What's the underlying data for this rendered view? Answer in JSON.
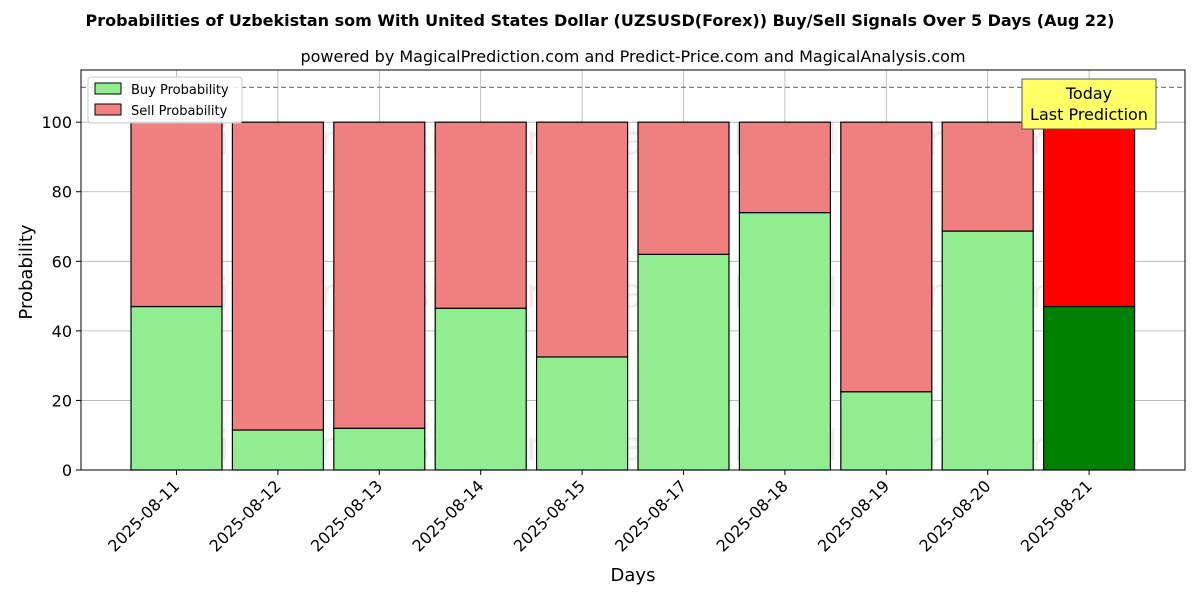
{
  "chart_data": {
    "type": "bar",
    "stacked": true,
    "title": "Probabilities of Uzbekistan som With United States Dollar (UZSUSD(Forex)) Buy/Sell Signals Over 5 Days (Aug 22)",
    "subtitle": "powered by MagicalPrediction.com and Predict-Price.com and MagicalAnalysis.com",
    "xlabel": "Days",
    "ylabel": "Probability",
    "ylim": [
      0,
      115
    ],
    "yticks": [
      0,
      20,
      40,
      60,
      80,
      100
    ],
    "grid": true,
    "reference_line": 110,
    "categories": [
      "2025-08-11",
      "2025-08-12",
      "2025-08-13",
      "2025-08-14",
      "2025-08-15",
      "2025-08-17",
      "2025-08-18",
      "2025-08-19",
      "2025-08-20",
      "2025-08-21"
    ],
    "series": [
      {
        "name": "Buy Probability",
        "color": "#90ee90",
        "highlight_color": "#008000",
        "values": [
          47,
          11.5,
          12,
          46.5,
          32.5,
          62,
          74,
          22.5,
          68.7,
          47
        ]
      },
      {
        "name": "Sell Probability",
        "color": "#f08080",
        "highlight_color": "#ff0000",
        "values": [
          53,
          88.5,
          88,
          53.5,
          67.5,
          38,
          26,
          77.5,
          31.3,
          53
        ]
      }
    ],
    "highlight_index": 9,
    "legend_position": "top-left",
    "annotation": {
      "line1": "Today",
      "line2": "Last Prediction",
      "bg_color": "#ffff66"
    },
    "watermarks": [
      "MagicalAnalysis.com",
      "MagicalPrediction.com"
    ]
  }
}
